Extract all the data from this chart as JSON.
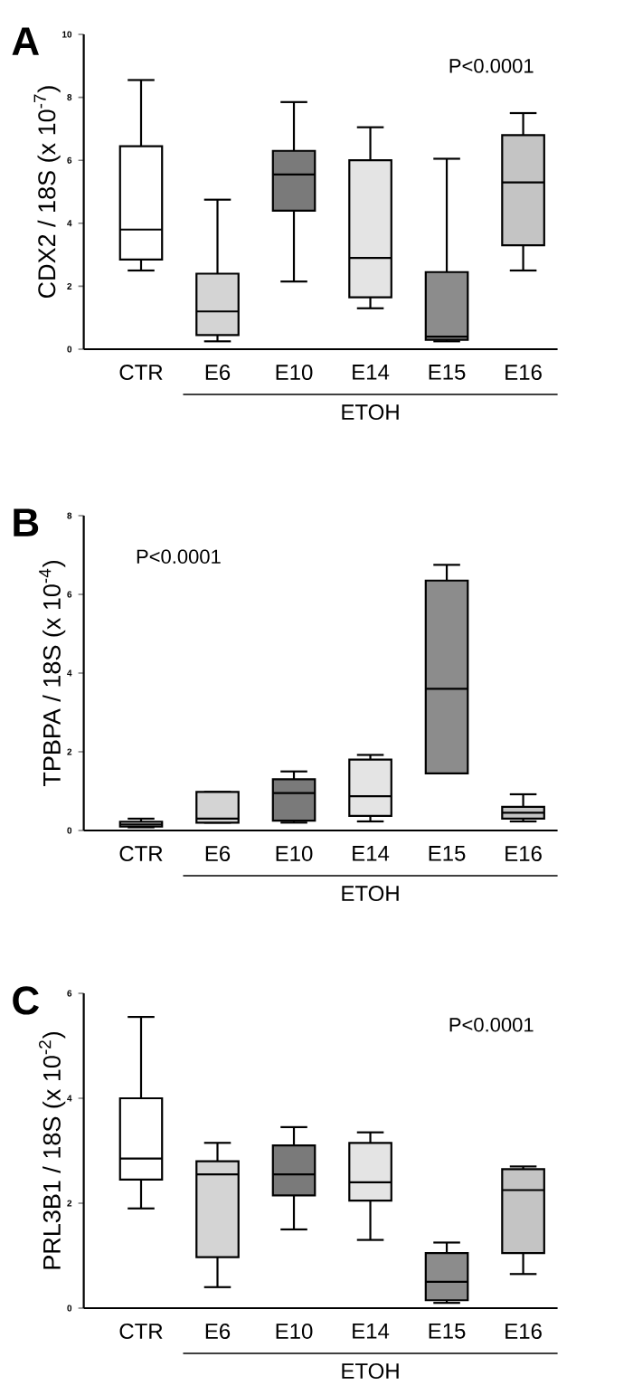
{
  "chart_data": [
    {
      "type": "box",
      "title": "A",
      "ylabel": "CDX2 / 18S (x 10$^{-7}$)",
      "categories": [
        "CTR",
        "E6",
        "E10",
        "E14",
        "E15",
        "E16"
      ],
      "colors": [
        "#ffffff",
        "#d4d4d4",
        "#7a7a7a",
        "#e4e4e4",
        "#8c8c8c",
        "#c4c4c4"
      ],
      "ylim": [
        0,
        10
      ],
      "yticks": [
        0,
        2,
        4,
        6,
        8,
        10
      ],
      "annotations": [
        "P<0.0001",
        "ETOH"
      ],
      "boxes": [
        {
          "low": 2.5,
          "q1": 2.85,
          "median": 3.8,
          "q3": 6.45,
          "high": 8.55
        },
        {
          "low": 0.25,
          "q1": 0.45,
          "median": 1.2,
          "q3": 2.4,
          "high": 4.75
        },
        {
          "low": 2.15,
          "q1": 4.4,
          "median": 5.55,
          "q3": 6.3,
          "high": 7.85
        },
        {
          "low": 1.3,
          "q1": 1.65,
          "median": 2.9,
          "q3": 6.0,
          "high": 7.05
        },
        {
          "low": 0.25,
          "q1": 0.3,
          "median": 0.4,
          "q3": 2.45,
          "high": 6.05
        },
        {
          "low": 2.5,
          "q1": 3.3,
          "median": 5.3,
          "q3": 6.8,
          "high": 7.5
        }
      ]
    },
    {
      "type": "box",
      "title": "B",
      "ylabel": "TPBPA / 18S (x 10$^{-4}$)",
      "categories": [
        "CTR",
        "E6",
        "E10",
        "E14",
        "E15",
        "E16"
      ],
      "colors": [
        "#ffffff",
        "#d4d4d4",
        "#7a7a7a",
        "#e4e4e4",
        "#8c8c8c",
        "#c4c4c4"
      ],
      "ylim": [
        0,
        8
      ],
      "yticks": [
        0,
        2,
        4,
        6,
        8
      ],
      "annotations": [
        "P<0.0001",
        "ETOH"
      ],
      "boxes": [
        {
          "low": 0.08,
          "q1": 0.1,
          "median": 0.15,
          "q3": 0.22,
          "high": 0.3
        },
        {
          "low": 0.2,
          "q1": 0.2,
          "median": 0.3,
          "q3": 0.98,
          "high": 0.98
        },
        {
          "low": 0.2,
          "q1": 0.25,
          "median": 0.95,
          "q3": 1.3,
          "high": 1.5
        },
        {
          "low": 0.23,
          "q1": 0.37,
          "median": 0.87,
          "q3": 1.8,
          "high": 1.92
        },
        {
          "low": 1.45,
          "q1": 1.45,
          "median": 3.6,
          "q3": 6.35,
          "high": 6.75
        },
        {
          "low": 0.23,
          "q1": 0.3,
          "median": 0.45,
          "q3": 0.6,
          "high": 0.92
        }
      ]
    },
    {
      "type": "box",
      "title": "C",
      "ylabel": "PRL3B1 / 18S (x 10$^{-2}$)",
      "categories": [
        "CTR",
        "E6",
        "E10",
        "E14",
        "E15",
        "E16"
      ],
      "colors": [
        "#ffffff",
        "#d4d4d4",
        "#7a7a7a",
        "#e4e4e4",
        "#8c8c8c",
        "#c4c4c4"
      ],
      "ylim": [
        0,
        6
      ],
      "yticks": [
        0,
        2,
        4,
        6
      ],
      "annotations": [
        "P<0.0001",
        "ETOH"
      ],
      "boxes": [
        {
          "low": 1.9,
          "q1": 2.45,
          "median": 2.85,
          "q3": 4.0,
          "high": 5.55
        },
        {
          "low": 0.4,
          "q1": 0.97,
          "median": 2.55,
          "q3": 2.8,
          "high": 3.15
        },
        {
          "low": 1.5,
          "q1": 2.15,
          "median": 2.55,
          "q3": 3.1,
          "high": 3.45
        },
        {
          "low": 1.3,
          "q1": 2.05,
          "median": 2.4,
          "q3": 3.15,
          "high": 3.35
        },
        {
          "low": 0.1,
          "q1": 0.15,
          "median": 0.5,
          "q3": 1.05,
          "high": 1.25
        },
        {
          "low": 0.65,
          "q1": 1.05,
          "median": 2.25,
          "q3": 2.65,
          "high": 2.7
        }
      ]
    }
  ]
}
